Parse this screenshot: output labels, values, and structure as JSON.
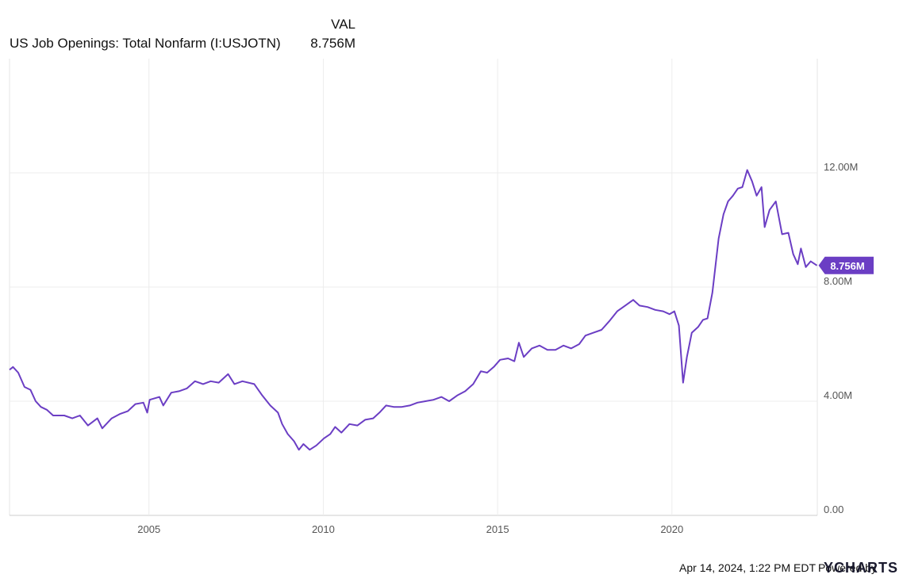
{
  "chart_data": {
    "type": "line",
    "value_header": "VAL",
    "series": [
      {
        "name": "US Job Openings: Total Nonfarm (I:USJOTN)",
        "color": "#6b3ec4",
        "last_label": "8.756M",
        "x": [
          2001.0,
          2001.1,
          2001.25,
          2001.43,
          2001.6,
          2001.75,
          2001.9,
          2002.07,
          2002.25,
          2002.57,
          2002.8,
          2003.02,
          2003.25,
          2003.52,
          2003.66,
          2003.93,
          2004.16,
          2004.39,
          2004.61,
          2004.84,
          2004.95,
          2005.02,
          2005.3,
          2005.41,
          2005.64,
          2005.86,
          2006.09,
          2006.32,
          2006.55,
          2006.77,
          2007.0,
          2007.27,
          2007.45,
          2007.68,
          2008.02,
          2008.25,
          2008.48,
          2008.7,
          2008.82,
          2008.98,
          2009.16,
          2009.3,
          2009.43,
          2009.61,
          2009.8,
          2010.02,
          2010.2,
          2010.34,
          2010.52,
          2010.75,
          2010.98,
          2011.2,
          2011.43,
          2011.61,
          2011.8,
          2012.02,
          2012.25,
          2012.48,
          2012.7,
          2012.93,
          2013.16,
          2013.39,
          2013.61,
          2013.84,
          2014.07,
          2014.3,
          2014.52,
          2014.7,
          2014.89,
          2015.07,
          2015.3,
          2015.48,
          2015.61,
          2015.75,
          2015.98,
          2016.2,
          2016.43,
          2016.66,
          2016.89,
          2017.11,
          2017.34,
          2017.52,
          2017.75,
          2017.98,
          2018.2,
          2018.43,
          2018.66,
          2018.89,
          2019.07,
          2019.3,
          2019.52,
          2019.75,
          2019.93,
          2020.07,
          2020.2,
          2020.32,
          2020.43,
          2020.57,
          2020.75,
          2020.89,
          2021.02,
          2021.16,
          2021.34,
          2021.48,
          2021.61,
          2021.75,
          2021.89,
          2022.02,
          2022.16,
          2022.3,
          2022.43,
          2022.57,
          2022.66,
          2022.8,
          2022.98,
          2023.16,
          2023.34,
          2023.48,
          2023.61,
          2023.7,
          2023.84,
          2023.98,
          2024.16
        ],
        "values": [
          5.1,
          5.2,
          5.0,
          4.5,
          4.4,
          4.0,
          3.8,
          3.7,
          3.5,
          3.5,
          3.4,
          3.5,
          3.15,
          3.4,
          3.05,
          3.4,
          3.55,
          3.65,
          3.9,
          3.95,
          3.6,
          4.05,
          4.15,
          3.85,
          4.3,
          4.35,
          4.45,
          4.7,
          4.6,
          4.7,
          4.65,
          4.95,
          4.6,
          4.7,
          4.6,
          4.2,
          3.85,
          3.6,
          3.2,
          2.85,
          2.6,
          2.3,
          2.5,
          2.3,
          2.45,
          2.7,
          2.85,
          3.1,
          2.9,
          3.2,
          3.15,
          3.35,
          3.4,
          3.6,
          3.85,
          3.8,
          3.8,
          3.85,
          3.95,
          4.0,
          4.05,
          4.15,
          4.0,
          4.2,
          4.35,
          4.6,
          5.05,
          5.0,
          5.2,
          5.45,
          5.5,
          5.4,
          6.05,
          5.55,
          5.85,
          5.95,
          5.8,
          5.8,
          5.95,
          5.85,
          6.0,
          6.3,
          6.4,
          6.5,
          6.8,
          7.15,
          7.35,
          7.55,
          7.35,
          7.3,
          7.2,
          7.15,
          7.05,
          7.15,
          6.65,
          4.65,
          5.55,
          6.4,
          6.6,
          6.85,
          6.9,
          7.8,
          9.7,
          10.55,
          11.0,
          11.2,
          11.45,
          11.5,
          12.1,
          11.7,
          11.2,
          11.5,
          10.1,
          10.7,
          11.0,
          9.85,
          9.9,
          9.15,
          8.8,
          9.35,
          8.7,
          8.9,
          8.756
        ]
      }
    ],
    "xlim": [
      2001.0,
      2024.17
    ],
    "xticks": [
      2005,
      2010,
      2015,
      2020
    ],
    "ylim": [
      0,
      16
    ],
    "yticks": [
      {
        "value": 0,
        "label": "0.00"
      },
      {
        "value": 4,
        "label": "4.00M"
      },
      {
        "value": 8,
        "label": "8.00M"
      },
      {
        "value": 12,
        "label": "12.00M"
      }
    ],
    "grid": true,
    "footer": {
      "timestamp": "Apr 14, 2024, 1:22 PM EDT",
      "powered_by": "Powered by",
      "brand": "YCHARTS"
    }
  }
}
